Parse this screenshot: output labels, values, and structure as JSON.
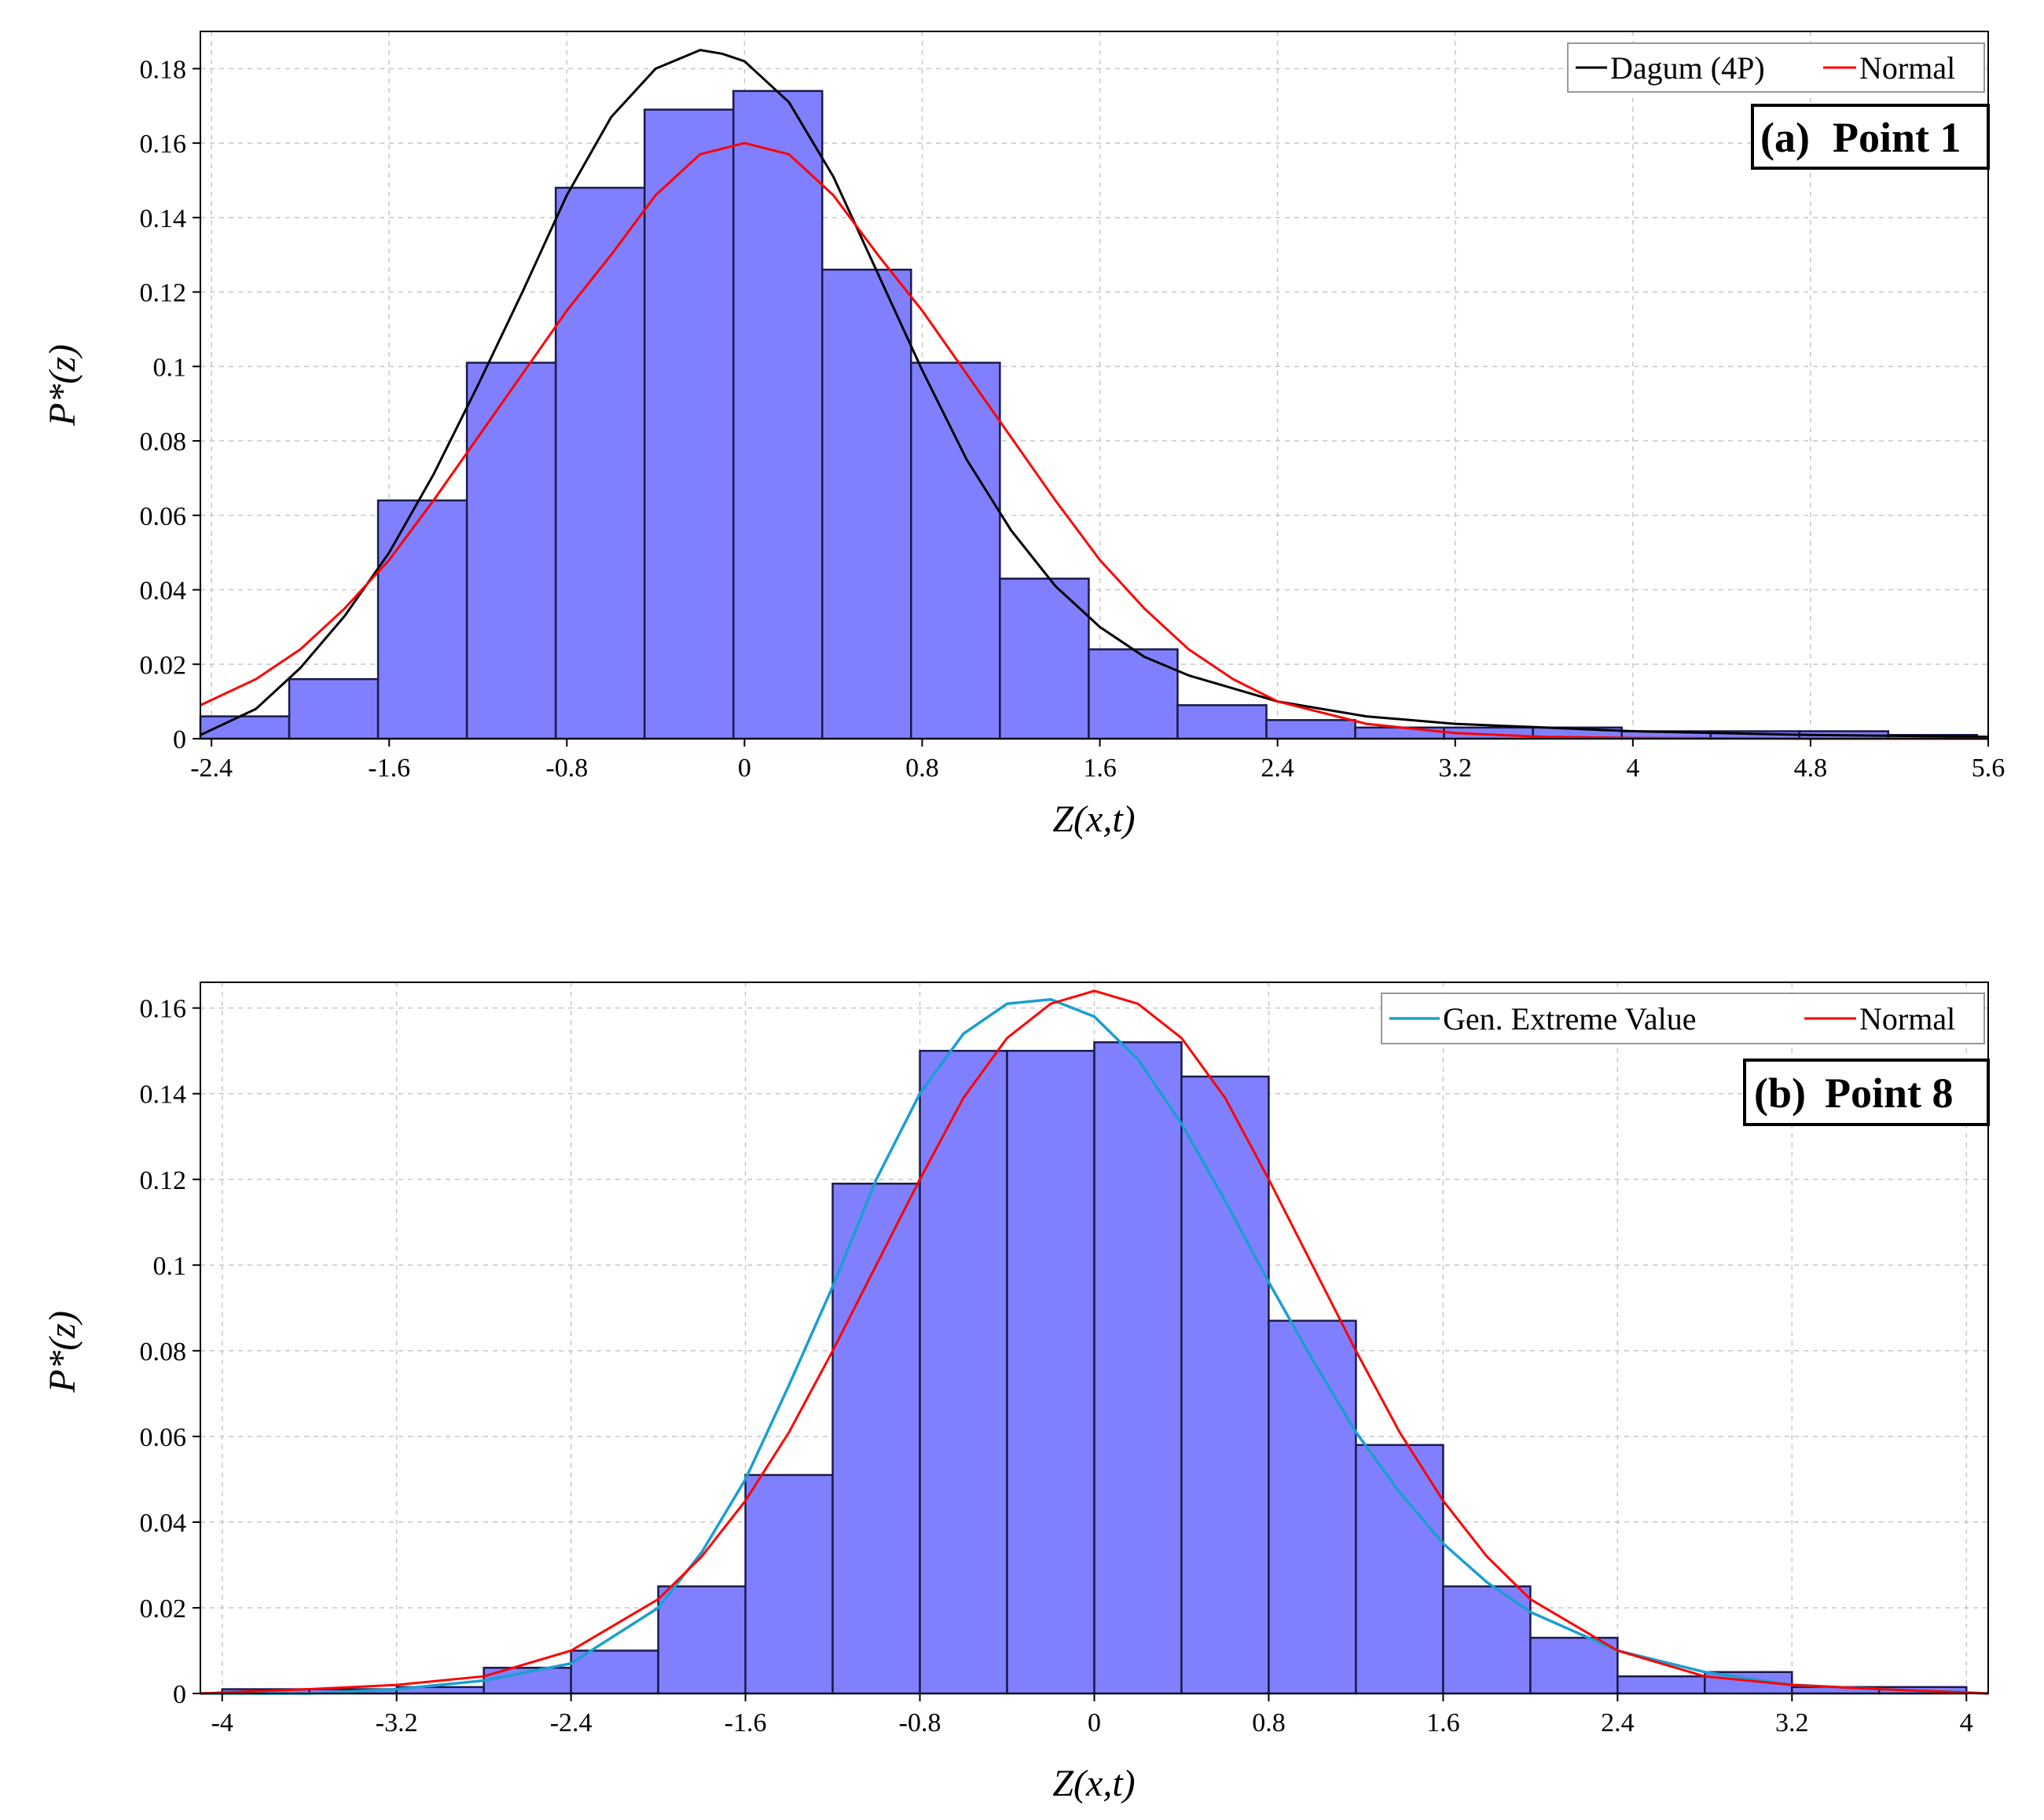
{
  "chart_data": [
    {
      "id": "a",
      "type": "bar",
      "title": "",
      "panel_label": "(a)",
      "panel_title": "Point 1",
      "xlabel": "Z(x,t)",
      "ylabel": "P*(z)",
      "xlim": [
        -2.45,
        5.6
      ],
      "ylim": [
        0,
        0.19
      ],
      "xticks": [
        -2.4,
        -1.6,
        -0.8,
        0,
        0.8,
        1.6,
        2.4,
        3.2,
        4,
        4.8,
        5.6
      ],
      "xtick_labels": [
        "-2.4",
        "-1.6",
        "-0.8",
        "0",
        "0.8",
        "1.6",
        "2.4",
        "3.2",
        "4",
        "4.8",
        "5.6"
      ],
      "yticks": [
        0,
        0.02,
        0.04,
        0.06,
        0.08,
        0.1,
        0.12,
        0.14,
        0.16,
        0.18
      ],
      "ytick_labels": [
        "0",
        "0.02",
        "0.04",
        "0.06",
        "0.08",
        "0.1",
        "0.12",
        "0.14",
        "0.16",
        "0.18"
      ],
      "grid": true,
      "legend_position": "top-right",
      "bins": {
        "start": -2.45,
        "width": 0.4,
        "values": [
          0.006,
          0.016,
          0.064,
          0.101,
          0.148,
          0.169,
          0.174,
          0.126,
          0.101,
          0.043,
          0.024,
          0.009,
          0.005,
          0.003,
          0.003,
          0.003,
          0.002,
          0.002,
          0.002,
          0.001
        ]
      },
      "series": [
        {
          "name": "Dagum (4P)",
          "color": "#000000",
          "x": [
            -2.45,
            -2.2,
            -2.0,
            -1.8,
            -1.6,
            -1.4,
            -1.2,
            -1.0,
            -0.8,
            -0.6,
            -0.4,
            -0.2,
            -0.1,
            0.0,
            0.2,
            0.4,
            0.6,
            0.8,
            1.0,
            1.2,
            1.4,
            1.6,
            1.8,
            2.0,
            2.4,
            2.8,
            3.2,
            3.6,
            4.0,
            4.8,
            5.6
          ],
          "values": [
            0.001,
            0.008,
            0.019,
            0.033,
            0.05,
            0.071,
            0.095,
            0.12,
            0.146,
            0.167,
            0.18,
            0.185,
            0.184,
            0.182,
            0.171,
            0.151,
            0.125,
            0.099,
            0.075,
            0.056,
            0.041,
            0.03,
            0.022,
            0.017,
            0.01,
            0.006,
            0.004,
            0.003,
            0.002,
            0.001,
            0.0005
          ]
        },
        {
          "name": "Normal",
          "color": "#ff0000",
          "x": [
            -2.45,
            -2.2,
            -2.0,
            -1.8,
            -1.6,
            -1.4,
            -1.2,
            -1.0,
            -0.8,
            -0.6,
            -0.4,
            -0.2,
            0.0,
            0.2,
            0.4,
            0.6,
            0.8,
            1.0,
            1.2,
            1.4,
            1.6,
            1.8,
            2.0,
            2.2,
            2.4,
            2.8,
            3.2,
            3.6,
            4.0,
            4.8,
            5.6
          ],
          "values": [
            0.009,
            0.016,
            0.024,
            0.035,
            0.048,
            0.064,
            0.081,
            0.098,
            0.115,
            0.13,
            0.146,
            0.157,
            0.16,
            0.157,
            0.146,
            0.13,
            0.115,
            0.098,
            0.081,
            0.064,
            0.048,
            0.035,
            0.024,
            0.016,
            0.01,
            0.004,
            0.0015,
            0.0005,
            0.0002,
            0.0,
            0.0
          ]
        }
      ]
    },
    {
      "id": "b",
      "type": "bar",
      "title": "",
      "panel_label": "(b)",
      "panel_title": "Point 8",
      "xlabel": "Z(x,t)",
      "ylabel": "P*(z)",
      "xlim": [
        -4.1,
        4.1
      ],
      "ylim": [
        0,
        0.166
      ],
      "xticks": [
        -4,
        -3.2,
        -2.4,
        -1.6,
        -0.8,
        0,
        0.8,
        1.6,
        2.4,
        3.2,
        4
      ],
      "xtick_labels": [
        "-4",
        "-3.2",
        "-2.4",
        "-1.6",
        "-0.8",
        "0",
        "0.8",
        "1.6",
        "2.4",
        "3.2",
        "4"
      ],
      "yticks": [
        0,
        0.02,
        0.04,
        0.06,
        0.08,
        0.1,
        0.12,
        0.14,
        0.16
      ],
      "ytick_labels": [
        "0",
        "0.02",
        "0.04",
        "0.06",
        "0.08",
        "0.1",
        "0.12",
        "0.14",
        "0.16"
      ],
      "grid": true,
      "legend_position": "top-right",
      "bins": {
        "start": -4.0,
        "width": 0.4,
        "values": [
          0.001,
          0.001,
          0.0015,
          0.006,
          0.01,
          0.025,
          0.051,
          0.119,
          0.15,
          0.15,
          0.152,
          0.144,
          0.087,
          0.058,
          0.025,
          0.013,
          0.004,
          0.005,
          0.0015,
          0.0015
        ]
      },
      "series": [
        {
          "name": "Gen. Extreme Value",
          "color": "#1a9fd0",
          "x": [
            -4.1,
            -3.6,
            -3.2,
            -2.8,
            -2.4,
            -2.0,
            -1.8,
            -1.6,
            -1.4,
            -1.2,
            -1.0,
            -0.8,
            -0.6,
            -0.4,
            -0.2,
            0.0,
            0.2,
            0.4,
            0.6,
            0.8,
            1.0,
            1.2,
            1.4,
            1.6,
            1.8,
            2.0,
            2.4,
            2.8,
            3.2,
            3.6,
            4.1
          ],
          "values": [
            0.0,
            0.0,
            0.001,
            0.003,
            0.007,
            0.02,
            0.033,
            0.05,
            0.072,
            0.095,
            0.12,
            0.14,
            0.154,
            0.161,
            0.162,
            0.158,
            0.148,
            0.133,
            0.115,
            0.096,
            0.078,
            0.061,
            0.047,
            0.035,
            0.026,
            0.019,
            0.01,
            0.005,
            0.002,
            0.001,
            0.0
          ]
        },
        {
          "name": "Normal",
          "color": "#ff0000",
          "x": [
            -4.1,
            -3.6,
            -3.2,
            -2.8,
            -2.4,
            -2.0,
            -1.8,
            -1.6,
            -1.4,
            -1.2,
            -1.0,
            -0.8,
            -0.6,
            -0.4,
            -0.2,
            0.0,
            0.2,
            0.4,
            0.6,
            0.8,
            1.0,
            1.2,
            1.4,
            1.6,
            1.8,
            2.0,
            2.4,
            2.8,
            3.2,
            3.6,
            4.1
          ],
          "values": [
            0.0,
            0.001,
            0.002,
            0.004,
            0.01,
            0.022,
            0.032,
            0.045,
            0.061,
            0.08,
            0.1,
            0.12,
            0.139,
            0.153,
            0.161,
            0.164,
            0.161,
            0.153,
            0.139,
            0.12,
            0.1,
            0.08,
            0.061,
            0.045,
            0.032,
            0.022,
            0.01,
            0.004,
            0.002,
            0.001,
            0.0
          ]
        }
      ]
    }
  ]
}
